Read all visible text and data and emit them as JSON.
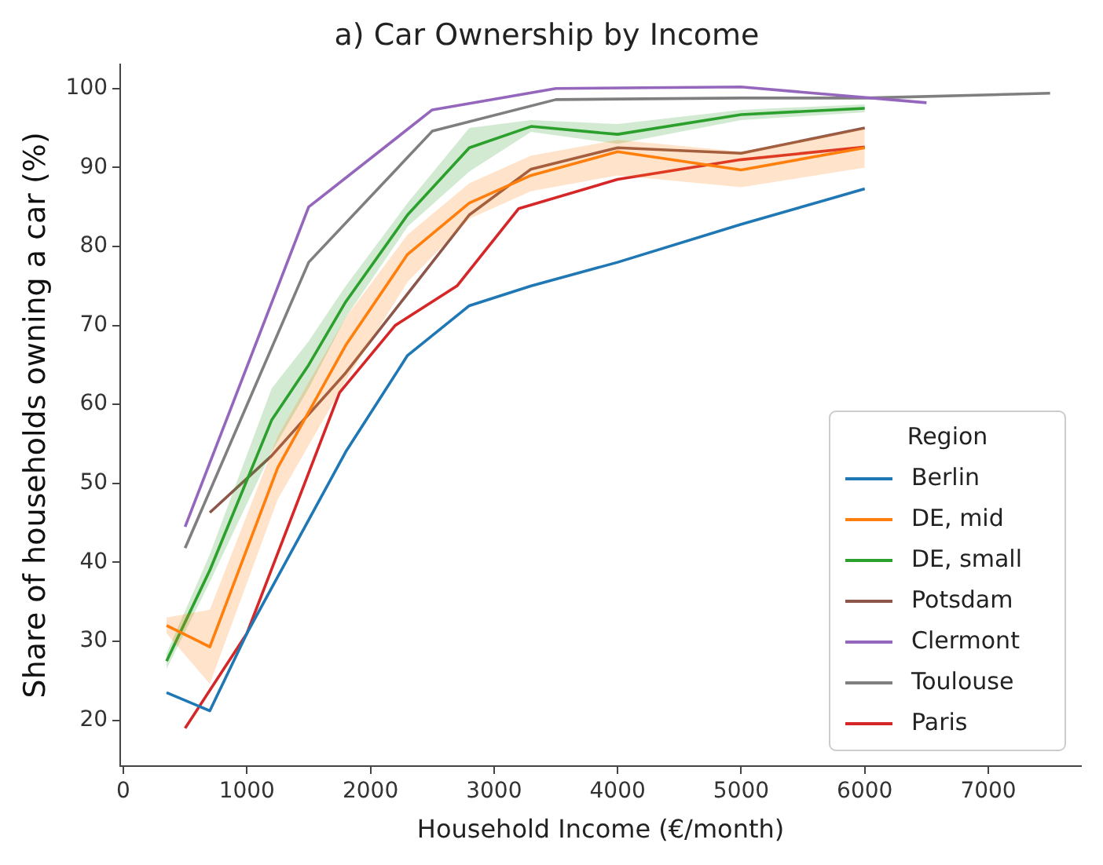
{
  "chart_data": {
    "type": "line",
    "title": "a) Car Ownership by Income",
    "xlabel": "Household Income (€/month)",
    "ylabel": "Share of households owning a car (%)",
    "legend_title": "Region",
    "legend": "bottom right",
    "grid": false,
    "marker": "none",
    "line_style": "solid",
    "xlim": [
      -25,
      7750
    ],
    "xticks": [
      0,
      1000,
      2000,
      3000,
      4000,
      5000,
      6000,
      7000
    ],
    "ylim": [
      14.2,
      103.1
    ],
    "yticks": [
      20,
      30,
      40,
      50,
      60,
      70,
      80,
      90,
      100
    ],
    "series": [
      {
        "name": "Berlin",
        "color": "#1f77b4",
        "x": [
          350,
          700,
          1000,
          1800,
          2300,
          2800,
          3300,
          4000,
          5000,
          6000
        ],
        "values": [
          23.5,
          21.2,
          31,
          54,
          66.2,
          72.5,
          75,
          78,
          82.8,
          87.3
        ]
      },
      {
        "name": "DE, mid",
        "color": "#ff7f0e",
        "x": [
          350,
          700,
          1250,
          1800,
          2300,
          2800,
          3300,
          4000,
          5000,
          6000
        ],
        "values": [
          32,
          29.3,
          52,
          67.5,
          79,
          85.5,
          89,
          92,
          89.7,
          92.5
        ],
        "lower": [
          31,
          24.6,
          48,
          63,
          75.5,
          83.5,
          87,
          89,
          87.5,
          90
        ],
        "upper": [
          33,
          34,
          56,
          71,
          81.5,
          88,
          91.5,
          93.5,
          92,
          95
        ]
      },
      {
        "name": "DE, small",
        "color": "#2ca02c",
        "x": [
          350,
          700,
          1200,
          1500,
          1800,
          2300,
          2800,
          3300,
          4000,
          5000,
          6000
        ],
        "values": [
          27.5,
          39,
          58,
          65,
          73,
          84,
          92.5,
          95.2,
          94.2,
          96.7,
          97.5
        ],
        "lower": [
          26.5,
          37.5,
          54,
          62,
          71,
          82.5,
          89.5,
          94.5,
          93,
          96,
          97
        ],
        "upper": [
          28.5,
          41,
          62,
          68,
          75,
          85.5,
          95,
          96,
          95.5,
          97.3,
          98
        ]
      },
      {
        "name": "Potsdam",
        "color": "#8c564b",
        "x": [
          700,
          1200,
          1800,
          2300,
          2800,
          3300,
          4000,
          5000,
          6000
        ],
        "values": [
          46.3,
          53.5,
          64,
          74,
          84,
          89.8,
          92.5,
          91.8,
          95
        ]
      },
      {
        "name": "Clermont",
        "color": "#9467bd",
        "x": [
          500,
          1500,
          2500,
          3500,
          5000,
          6500
        ],
        "values": [
          44.5,
          85,
          97.3,
          100,
          100.2,
          98.2
        ]
      },
      {
        "name": "Toulouse",
        "color": "#7f7f7f",
        "x": [
          500,
          1500,
          2500,
          3500,
          5000,
          6000,
          7500
        ],
        "values": [
          41.8,
          78,
          94.6,
          98.6,
          98.8,
          98.8,
          99.4
        ]
      },
      {
        "name": "Paris",
        "color": "#d62728",
        "x": [
          500,
          1000,
          1750,
          2200,
          2700,
          3200,
          4000,
          5000,
          6000
        ],
        "values": [
          19,
          31,
          61.5,
          70,
          75,
          84.8,
          88.5,
          91,
          92.6
        ]
      }
    ]
  }
}
